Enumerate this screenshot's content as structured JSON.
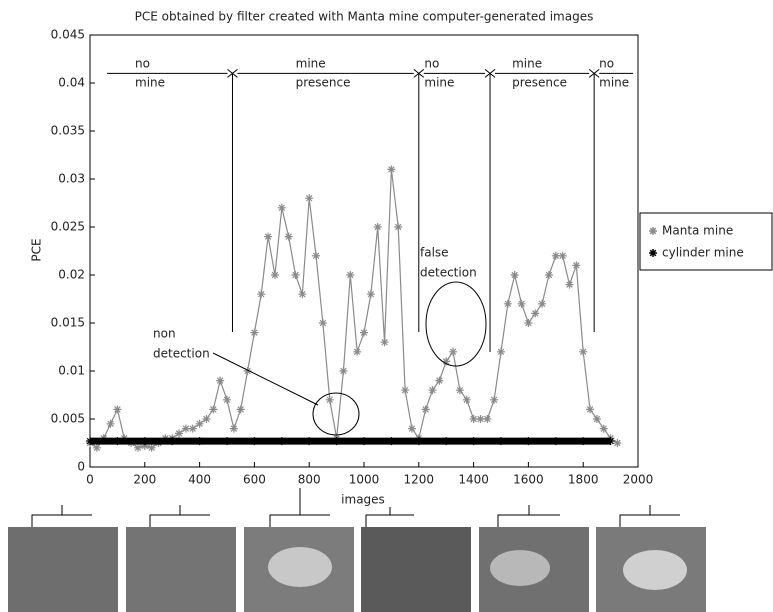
{
  "chart_data": {
    "type": "line",
    "title": "PCE obtained by filter created with Manta mine computer-generated images",
    "x_label": "images",
    "y_label": "PCE",
    "xlim": [
      0,
      2000
    ],
    "xticks": [
      0,
      200,
      400,
      600,
      800,
      1000,
      1200,
      1400,
      1600,
      1800,
      2000
    ],
    "ylim": [
      0,
      0.045
    ],
    "yticks": [
      0,
      0.005,
      0.01,
      0.015,
      0.02,
      0.025,
      0.03,
      0.035,
      0.04,
      0.045
    ],
    "legend": "right",
    "series": [
      {
        "name": "Manta mine",
        "color": "#8a8a8a",
        "x": [
          0,
          25,
          50,
          75,
          100,
          125,
          150,
          175,
          200,
          225,
          250,
          275,
          300,
          325,
          350,
          375,
          400,
          425,
          450,
          475,
          500,
          525,
          550,
          575,
          600,
          625,
          650,
          675,
          700,
          725,
          750,
          775,
          800,
          825,
          850,
          875,
          900,
          925,
          950,
          975,
          1000,
          1025,
          1050,
          1075,
          1100,
          1125,
          1150,
          1175,
          1200,
          1225,
          1250,
          1275,
          1300,
          1325,
          1350,
          1375,
          1400,
          1425,
          1450,
          1475,
          1500,
          1525,
          1550,
          1575,
          1600,
          1625,
          1650,
          1675,
          1700,
          1725,
          1750,
          1775,
          1800,
          1825,
          1850,
          1875,
          1900,
          1925
        ],
        "values": [
          0.0025,
          0.002,
          0.003,
          0.0045,
          0.006,
          0.003,
          0.0025,
          0.002,
          0.0022,
          0.002,
          0.0025,
          0.003,
          0.003,
          0.0035,
          0.004,
          0.004,
          0.0045,
          0.005,
          0.006,
          0.009,
          0.007,
          0.004,
          0.006,
          0.01,
          0.014,
          0.018,
          0.024,
          0.02,
          0.027,
          0.024,
          0.02,
          0.018,
          0.028,
          0.022,
          0.015,
          0.007,
          0.003,
          0.01,
          0.02,
          0.012,
          0.014,
          0.018,
          0.025,
          0.013,
          0.031,
          0.025,
          0.008,
          0.004,
          0.003,
          0.006,
          0.008,
          0.009,
          0.011,
          0.012,
          0.008,
          0.007,
          0.005,
          0.005,
          0.005,
          0.007,
          0.012,
          0.017,
          0.02,
          0.017,
          0.015,
          0.016,
          0.017,
          0.02,
          0.022,
          0.022,
          0.019,
          0.021,
          0.012,
          0.006,
          0.005,
          0.004,
          0.003,
          0.0025
        ]
      },
      {
        "name": "cylinder mine",
        "color": "#000000",
        "x": [
          0,
          100,
          200,
          300,
          400,
          500,
          600,
          700,
          800,
          900,
          1000,
          1100,
          1200,
          1300,
          1400,
          1500,
          1600,
          1700,
          1800,
          1900
        ],
        "values": [
          0.0027,
          0.0027,
          0.0027,
          0.0027,
          0.0027,
          0.0027,
          0.0027,
          0.0027,
          0.0027,
          0.0027,
          0.0027,
          0.0027,
          0.0027,
          0.0027,
          0.0027,
          0.0027,
          0.0027,
          0.0027,
          0.0027,
          0.0027
        ]
      }
    ],
    "annotations": {
      "region_boundaries": [
        520,
        1200,
        1460,
        1840
      ],
      "regions": [
        {
          "lines": [
            "no",
            "mine"
          ]
        },
        {
          "lines": [
            "mine",
            "presence"
          ]
        },
        {
          "lines": [
            "no",
            "mine"
          ]
        },
        {
          "lines": [
            "mine",
            "presence"
          ]
        },
        {
          "lines": [
            "no",
            "mine"
          ]
        }
      ],
      "non_detection": [
        "non",
        "detection"
      ],
      "false_detection": [
        "false",
        "detection"
      ]
    }
  }
}
